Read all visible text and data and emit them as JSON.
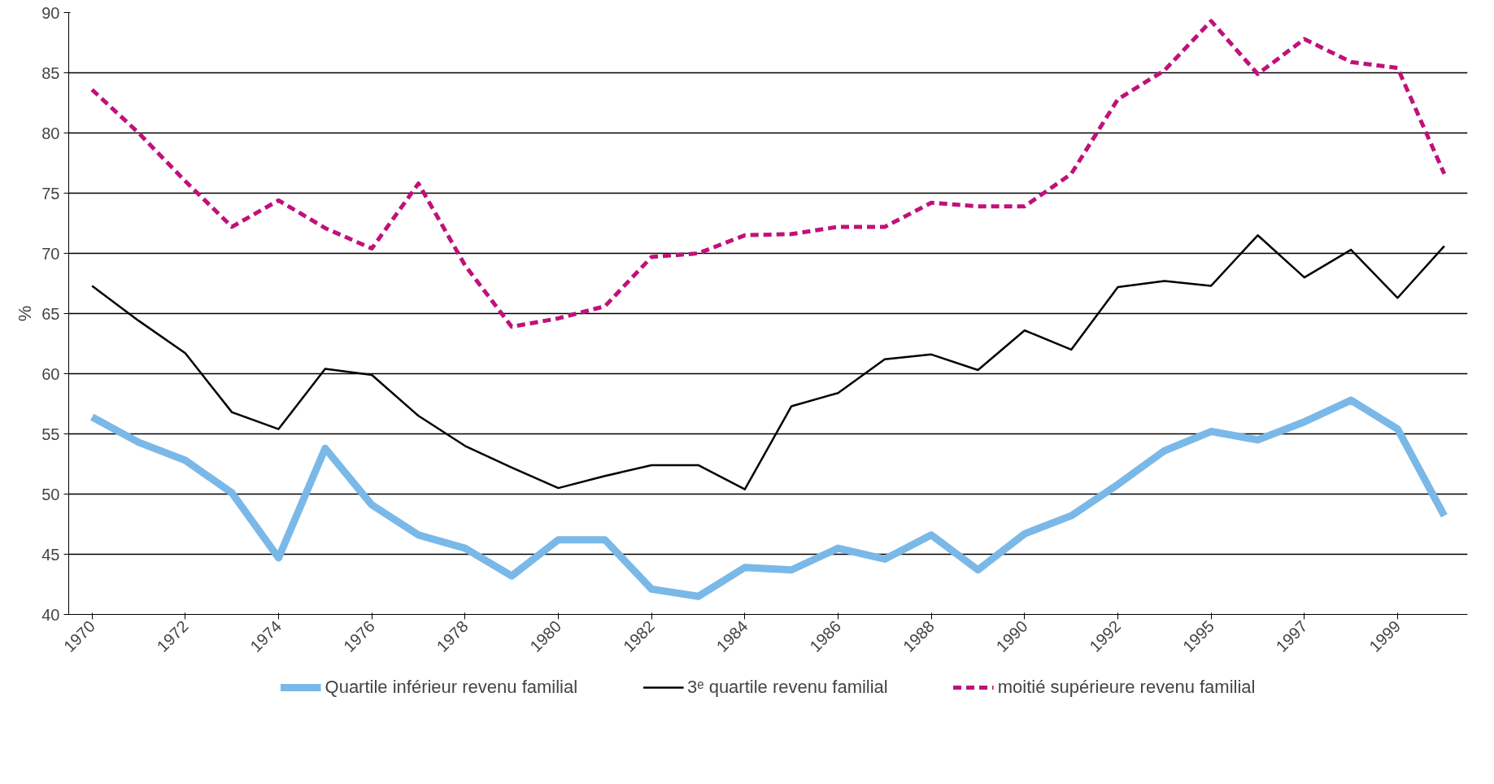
{
  "chart_data": {
    "type": "line",
    "ylabel": "%",
    "categories": [
      "1970",
      null,
      "1972",
      null,
      "1974",
      null,
      "1976",
      null,
      "1978",
      null,
      "1980",
      null,
      "1982",
      null,
      "1984",
      null,
      "1986",
      null,
      "1988",
      null,
      "1990",
      null,
      "1992",
      null,
      "1995",
      null,
      "1997",
      null,
      "1999",
      null
    ],
    "series": [
      {
        "name": "Quartile inférieur revenu familial",
        "color": "#7ab8e8",
        "line_style": "solid",
        "values": [
          56.4,
          54.3,
          52.8,
          50.1,
          44.7,
          53.8,
          49.1,
          46.6,
          45.5,
          43.2,
          46.2,
          46.2,
          42.1,
          41.5,
          43.9,
          43.7,
          45.5,
          44.6,
          46.6,
          43.7,
          46.7,
          48.2,
          50.8,
          53.6,
          55.2,
          54.5,
          56.0,
          57.8,
          55.4,
          48.2
        ]
      },
      {
        "name": "3ᵉ quartile revenu familial",
        "color": "#000000",
        "line_style": "solid",
        "values": [
          67.3,
          64.4,
          61.7,
          56.8,
          55.4,
          60.4,
          59.9,
          56.5,
          54.0,
          52.2,
          50.5,
          51.5,
          52.4,
          52.4,
          50.4,
          57.3,
          58.4,
          61.2,
          61.6,
          60.3,
          63.6,
          62.0,
          67.2,
          67.7,
          67.3,
          71.5,
          68.0,
          70.3,
          66.3,
          70.6
        ]
      },
      {
        "name": "moitié supérieure revenu familial",
        "color": "#c0117a",
        "line_style": "dashed",
        "values": [
          83.6,
          80.0,
          76.0,
          72.2,
          74.4,
          72.1,
          70.4,
          75.8,
          69.0,
          63.9,
          64.6,
          65.6,
          69.7,
          70.0,
          71.5,
          71.6,
          72.2,
          72.2,
          74.2,
          73.9,
          73.9,
          76.6,
          82.8,
          85.2,
          89.3,
          84.9,
          87.8,
          85.9,
          85.4,
          76.6
        ]
      }
    ],
    "ylim": [
      40,
      90
    ],
    "yticks": [
      40,
      45,
      50,
      55,
      60,
      65,
      70,
      75,
      80,
      85,
      90
    ],
    "grid": "y",
    "legend": "bottom",
    "marker": "none"
  }
}
